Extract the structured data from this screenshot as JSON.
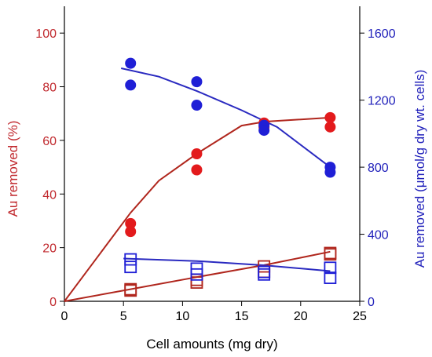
{
  "colors": {
    "left_axis": "#c0282d",
    "right_axis": "#2222bb",
    "red_marker": "#e31a1c",
    "red_line": "#b0261d",
    "blue_marker": "#1f1fd6",
    "blue_line": "#2a2ac0",
    "frame": "#000000"
  },
  "chart_data": {
    "type": "scatter",
    "xlabel": "Cell amounts (mg dry)",
    "ylabel": "Au removed (%)",
    "y2label": "Au removed (μmol/g dry wt. cells)",
    "xlim": [
      0,
      25
    ],
    "ylim": [
      0,
      110
    ],
    "y2lim": [
      0,
      1760
    ],
    "xticks": [
      0,
      5,
      10,
      15,
      20,
      25
    ],
    "yticks": [
      0,
      20,
      40,
      60,
      80,
      100
    ],
    "y2ticks": [
      0,
      400,
      800,
      1200,
      1600
    ],
    "grid": false,
    "series": [
      {
        "axis": "left",
        "marker": "filled-circle",
        "color": "red",
        "points": [
          [
            5.6,
            29
          ],
          [
            5.6,
            26
          ],
          [
            11.2,
            55
          ],
          [
            11.2,
            49
          ],
          [
            16.9,
            66.5
          ],
          [
            16.9,
            65
          ],
          [
            22.5,
            68.5
          ],
          [
            22.5,
            65
          ]
        ]
      },
      {
        "axis": "left",
        "marker": "line",
        "color": "red",
        "points": [
          [
            0,
            0
          ],
          [
            5.6,
            33
          ],
          [
            8,
            45
          ],
          [
            11.2,
            55
          ],
          [
            15,
            65.5
          ],
          [
            17,
            67
          ],
          [
            22.5,
            68.5
          ]
        ]
      },
      {
        "axis": "left",
        "marker": "open-square",
        "color": "red",
        "points": [
          [
            5.6,
            4.5
          ],
          [
            5.6,
            4
          ],
          [
            11.2,
            8
          ],
          [
            11.2,
            7
          ],
          [
            16.9,
            13
          ],
          [
            16.9,
            11
          ],
          [
            22.5,
            18
          ],
          [
            22.5,
            17.5
          ]
        ]
      },
      {
        "axis": "left",
        "marker": "line",
        "color": "red",
        "points": [
          [
            0,
            0
          ],
          [
            5.6,
            4.5
          ],
          [
            11.2,
            9
          ],
          [
            16.9,
            13.5
          ],
          [
            22.5,
            18.5
          ]
        ]
      },
      {
        "axis": "right",
        "marker": "filled-circle",
        "color": "blue",
        "points": [
          [
            5.6,
            1420
          ],
          [
            5.6,
            1290
          ],
          [
            11.2,
            1310
          ],
          [
            11.2,
            1170
          ],
          [
            16.9,
            1050
          ],
          [
            16.9,
            1020
          ],
          [
            22.5,
            800
          ],
          [
            22.5,
            770
          ]
        ]
      },
      {
        "axis": "right",
        "marker": "line",
        "color": "blue",
        "points": [
          [
            4.8,
            1390
          ],
          [
            8,
            1340
          ],
          [
            11.2,
            1255
          ],
          [
            15,
            1140
          ],
          [
            18,
            1040
          ],
          [
            22.5,
            800
          ]
        ]
      },
      {
        "axis": "right",
        "marker": "open-square",
        "color": "blue",
        "points": [
          [
            5.6,
            250
          ],
          [
            5.6,
            205
          ],
          [
            11.2,
            195
          ],
          [
            11.2,
            160
          ],
          [
            16.9,
            175
          ],
          [
            16.9,
            160
          ],
          [
            22.5,
            200
          ],
          [
            22.5,
            140
          ]
        ]
      },
      {
        "axis": "right",
        "marker": "line",
        "color": "blue",
        "points": [
          [
            5,
            255
          ],
          [
            11.2,
            240
          ],
          [
            16.9,
            215
          ],
          [
            22.5,
            180
          ]
        ]
      }
    ]
  }
}
